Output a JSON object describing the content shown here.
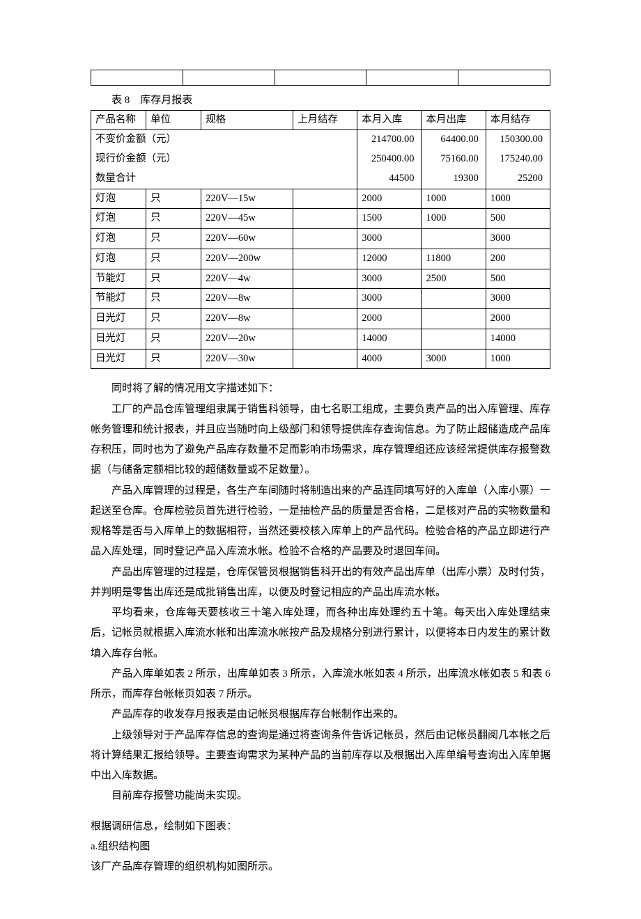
{
  "spacer_table": {
    "cols": 5
  },
  "caption": "表 8　库存月报表",
  "table8": {
    "headers": [
      "产品名称",
      "单位",
      "规格",
      "上月结存",
      "本月入库",
      "本月出库",
      "本月结存"
    ],
    "summary": [
      {
        "label": "不变价金额（元）",
        "in": "214700.00",
        "out": "64400.00",
        "bal": "150300.00"
      },
      {
        "label": "现行价金额（元）",
        "in": "250400.00",
        "out": "75160.00",
        "bal": "175240.00"
      },
      {
        "label": "数量合计",
        "in": "44500",
        "out": "19300",
        "bal": "25200"
      }
    ],
    "rows": [
      {
        "name": "灯泡",
        "unit": "只",
        "spec": "220V—15w",
        "prev": "",
        "in": "2000",
        "out": "1000",
        "bal": "1000"
      },
      {
        "name": "灯泡",
        "unit": "只",
        "spec": "220V—45w",
        "prev": "",
        "in": "1500",
        "out": "1000",
        "bal": "500"
      },
      {
        "name": "灯泡",
        "unit": "只",
        "spec": "220V—60w",
        "prev": "",
        "in": "3000",
        "out": "",
        "bal": "3000"
      },
      {
        "name": "灯泡",
        "unit": "只",
        "spec": "220V—200w",
        "prev": "",
        "in": "12000",
        "out": "11800",
        "bal": "200"
      },
      {
        "name": "节能灯",
        "unit": "只",
        "spec": "220V—4w",
        "prev": "",
        "in": "3000",
        "out": "2500",
        "bal": "500"
      },
      {
        "name": "节能灯",
        "unit": "只",
        "spec": "220V—8w",
        "prev": "",
        "in": "3000",
        "out": "",
        "bal": "3000"
      },
      {
        "name": "日光灯",
        "unit": "只",
        "spec": "220V—8w",
        "prev": "",
        "in": "2000",
        "out": "",
        "bal": "2000"
      },
      {
        "name": "日光灯",
        "unit": "只",
        "spec": "220V—20w",
        "prev": "",
        "in": "14000",
        "out": "",
        "bal": "14000"
      },
      {
        "name": "日光灯",
        "unit": "只",
        "spec": "220V—30w",
        "prev": "",
        "in": "4000",
        "out": "3000",
        "bal": "1000"
      }
    ]
  },
  "paragraphs": [
    "同时将了解的情况用文字描述如下：",
    "工厂的产品仓库管理组隶属于销售科领导，由七名职工组成，主要负责产品的出入库管理、库存帐务管理和统计报表，并且应当随时向上级部门和领导提供库存查询信息。为了防止超储造成产品库存积压，同时也为了避免产品库存数量不足而影响市场需求，库存管理组还应该经常提供库存报警数据（与储备定额相比较的超储数量或不足数量）。",
    "产品入库管理的过程是，各生产车间随时将制造出来的产品连同填写好的入库单（入库小票）一起送至仓库。仓库检验员首先进行检验，一是抽检产品的质量是否合格，二是核对产品的实物数量和规格等是否与入库单上的数据相符，当然还要校核入库单上的产品代码。检验合格的产品立即进行产品入库处理，同时登记产品入库流水帐。检验不合格的产品要及时退回车间。",
    "产品出库管理的过程是，仓库保管员根据销售科开出的有效产品出库单（出库小票）及时付货，并判明是零售出库还是成批销售出库，以便及时登记相应的产品出库流水帐。",
    "平均看来，仓库每天要核收三十笔入库处理，而各种出库处理约五十笔。每天出入库处理结束后，记帐员就根据入库流水帐和出库流水帐按产品及规格分别进行累计，以便将本日内发生的累计数填入库存台帐。",
    "产品入库单如表 2 所示，出库单如表 3 所示，入库流水帐如表 4 所示，出库流水帐如表 5 和表 6 所示，而库存台帐帐页如表 7 所示。",
    "产品库存的收发存月报表是由记帐员根据库存台帐制作出来的。",
    "上级领导对于产品库存信息的查询是通过将查询条件告诉记帐员，然后由记帐员翻阅几本帐之后将计算结果汇报给领导。主要查询需求为某种产品的当前库存以及根据出入库单编号查询出入库单据中出入库数据。",
    "目前库存报警功能尚未实现。"
  ],
  "tail": [
    "根据调研信息，绘制如下图表：",
    "a.组织结构图",
    "该厂产品库存管理的组织机构如图所示。"
  ]
}
